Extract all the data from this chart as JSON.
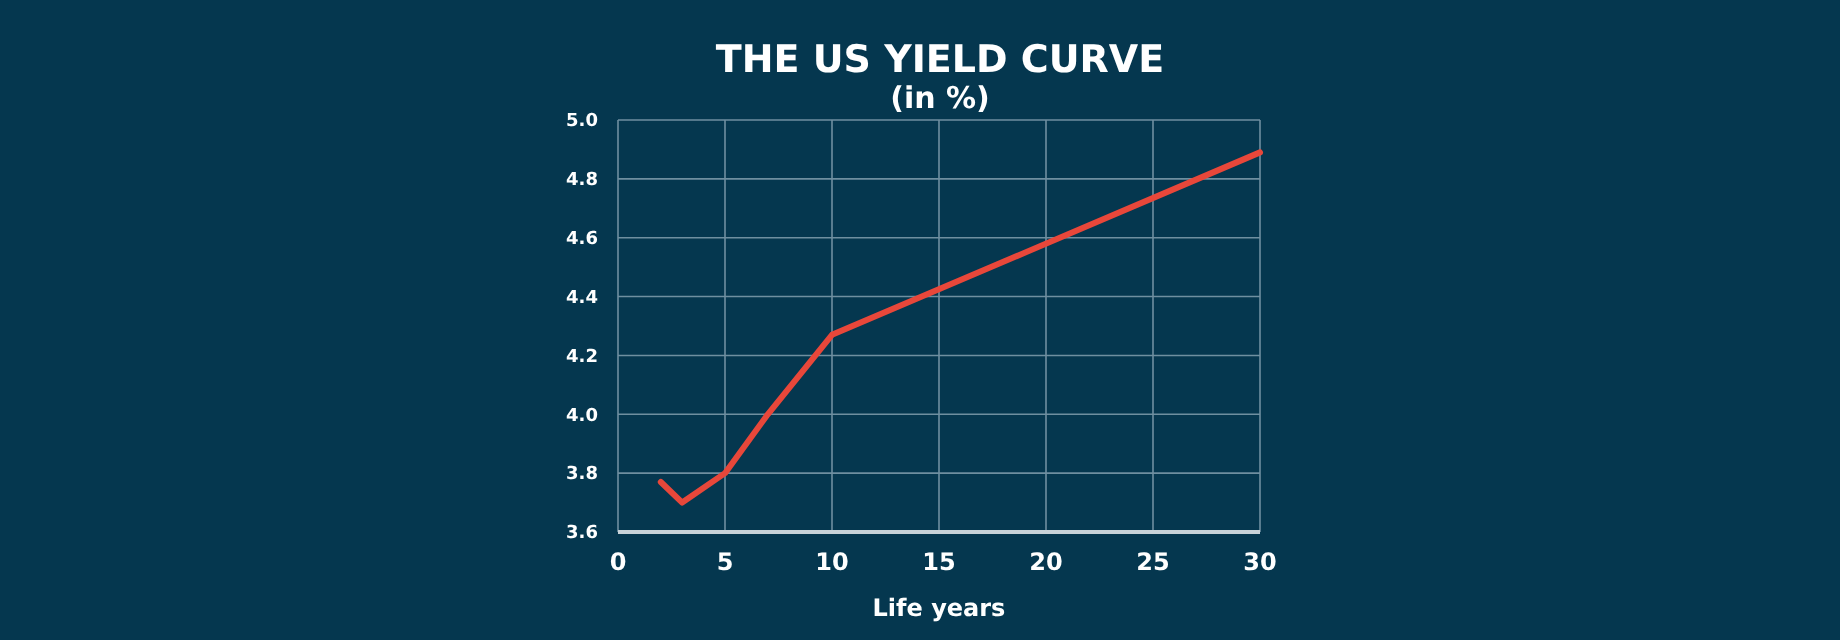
{
  "chart_data": {
    "type": "line",
    "title": "THE US YIELD CURVE",
    "subtitle": "(in %)",
    "xlabel": "Life years",
    "x": [
      2,
      3,
      5,
      7,
      10,
      30
    ],
    "series": [
      {
        "color": "#e8473a",
        "values": [
          3.77,
          3.7,
          3.8,
          4.0,
          4.27,
          4.89
        ]
      }
    ],
    "xlim": [
      0,
      30
    ],
    "xticks": [
      0,
      5,
      10,
      15,
      20,
      25,
      30
    ],
    "ylim": [
      3.6,
      5.0
    ],
    "yticks": [
      {
        "value": 3.6,
        "label": "3.6"
      },
      {
        "value": 3.8,
        "label": "3.8"
      },
      {
        "value": 4.0,
        "label": "4.0"
      },
      {
        "value": 4.2,
        "label": "4.2"
      },
      {
        "value": 4.4,
        "label": "4.4"
      },
      {
        "value": 4.6,
        "label": "4.6"
      },
      {
        "value": 4.8,
        "label": "4.8"
      },
      {
        "value": 5.0,
        "label": "5.0"
      }
    ],
    "grid": true,
    "marker": "none",
    "line_style": "solid"
  }
}
